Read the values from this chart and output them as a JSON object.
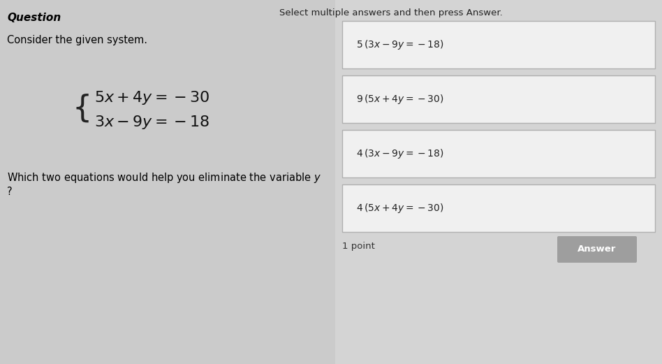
{
  "background_color": "#d0d0d0",
  "left_panel_bg": "#c8c8c8",
  "right_panel_bg": "#d8d8d8",
  "title_text": "Question",
  "title_color": "#000000",
  "title_fontsize": 11,
  "consider_text": "Consider the given system.",
  "consider_fontsize": 10.5,
  "system_line1": "$\\{5x + 4y = -30$",
  "system_line2": "$\\{3x - 9y = -18$",
  "question_text": "Which two equations would help you eliminate the variable ",
  "question_var": "y",
  "question_mark": "?",
  "select_text": "Select multiple answers and then press Answer.",
  "select_fontsize": 9.5,
  "options": [
    "$5\\,(3x - 9y = -18)$",
    "$9\\,(5x + 4y = -30)$",
    "$4\\,(3x - 9y = -18)$",
    "$4\\,(5x + 4y = -30)$"
  ],
  "option_box_color": "#f0f0f0",
  "option_border_color": "#b0b0b0",
  "option_fontsize": 10,
  "points_text": "1 point",
  "answer_btn_color": "#9e9e9e",
  "answer_btn_text": "Answer",
  "answer_btn_text_color": "#ffffff"
}
